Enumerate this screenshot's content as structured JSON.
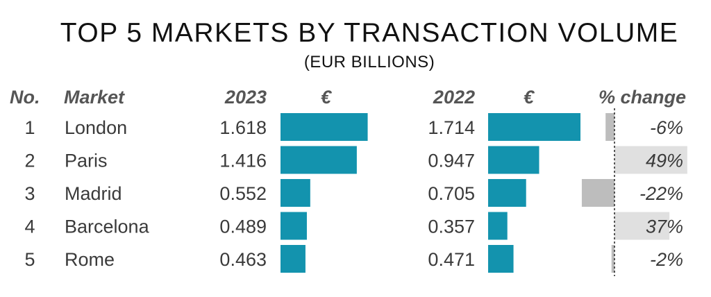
{
  "chart_data": {
    "type": "table",
    "title": "TOP 5 MARKETS BY TRANSACTION VOLUME",
    "subtitle": "(EUR BILLIONS)",
    "columns": [
      "No.",
      "Market",
      "2023",
      "€",
      "2022",
      "€",
      "% change"
    ],
    "rows": [
      {
        "no": "1",
        "market": "London",
        "v2023": 1.618,
        "v2023_label": "1.618",
        "v2022": 1.714,
        "v2022_label": "1.714",
        "change": -6,
        "change_label": "-6%"
      },
      {
        "no": "2",
        "market": "Paris",
        "v2023": 1.416,
        "v2023_label": "1.416",
        "v2022": 0.947,
        "v2022_label": "0.947",
        "change": 49,
        "change_label": "49%"
      },
      {
        "no": "3",
        "market": "Madrid",
        "v2023": 0.552,
        "v2023_label": "0.552",
        "v2022": 0.705,
        "v2022_label": "0.705",
        "change": -22,
        "change_label": "-22%"
      },
      {
        "no": "4",
        "market": "Barcelona",
        "v2023": 0.489,
        "v2023_label": "0.489",
        "v2022": 0.357,
        "v2022_label": "0.357",
        "change": 37,
        "change_label": "37%"
      },
      {
        "no": "5",
        "market": "Rome",
        "v2023": 0.463,
        "v2023_label": "0.463",
        "v2022": 0.471,
        "v2022_label": "0.471",
        "change": -2,
        "change_label": "-2%"
      }
    ],
    "volume_bar_max": 1.714,
    "change_bar_range": [
      -30,
      50
    ],
    "colors": {
      "volume_bar": "#1393ae",
      "negative_change_bar": "#bdbdbd",
      "positive_change_bar": "#e0e0e0",
      "zero_line": "#222222"
    }
  }
}
